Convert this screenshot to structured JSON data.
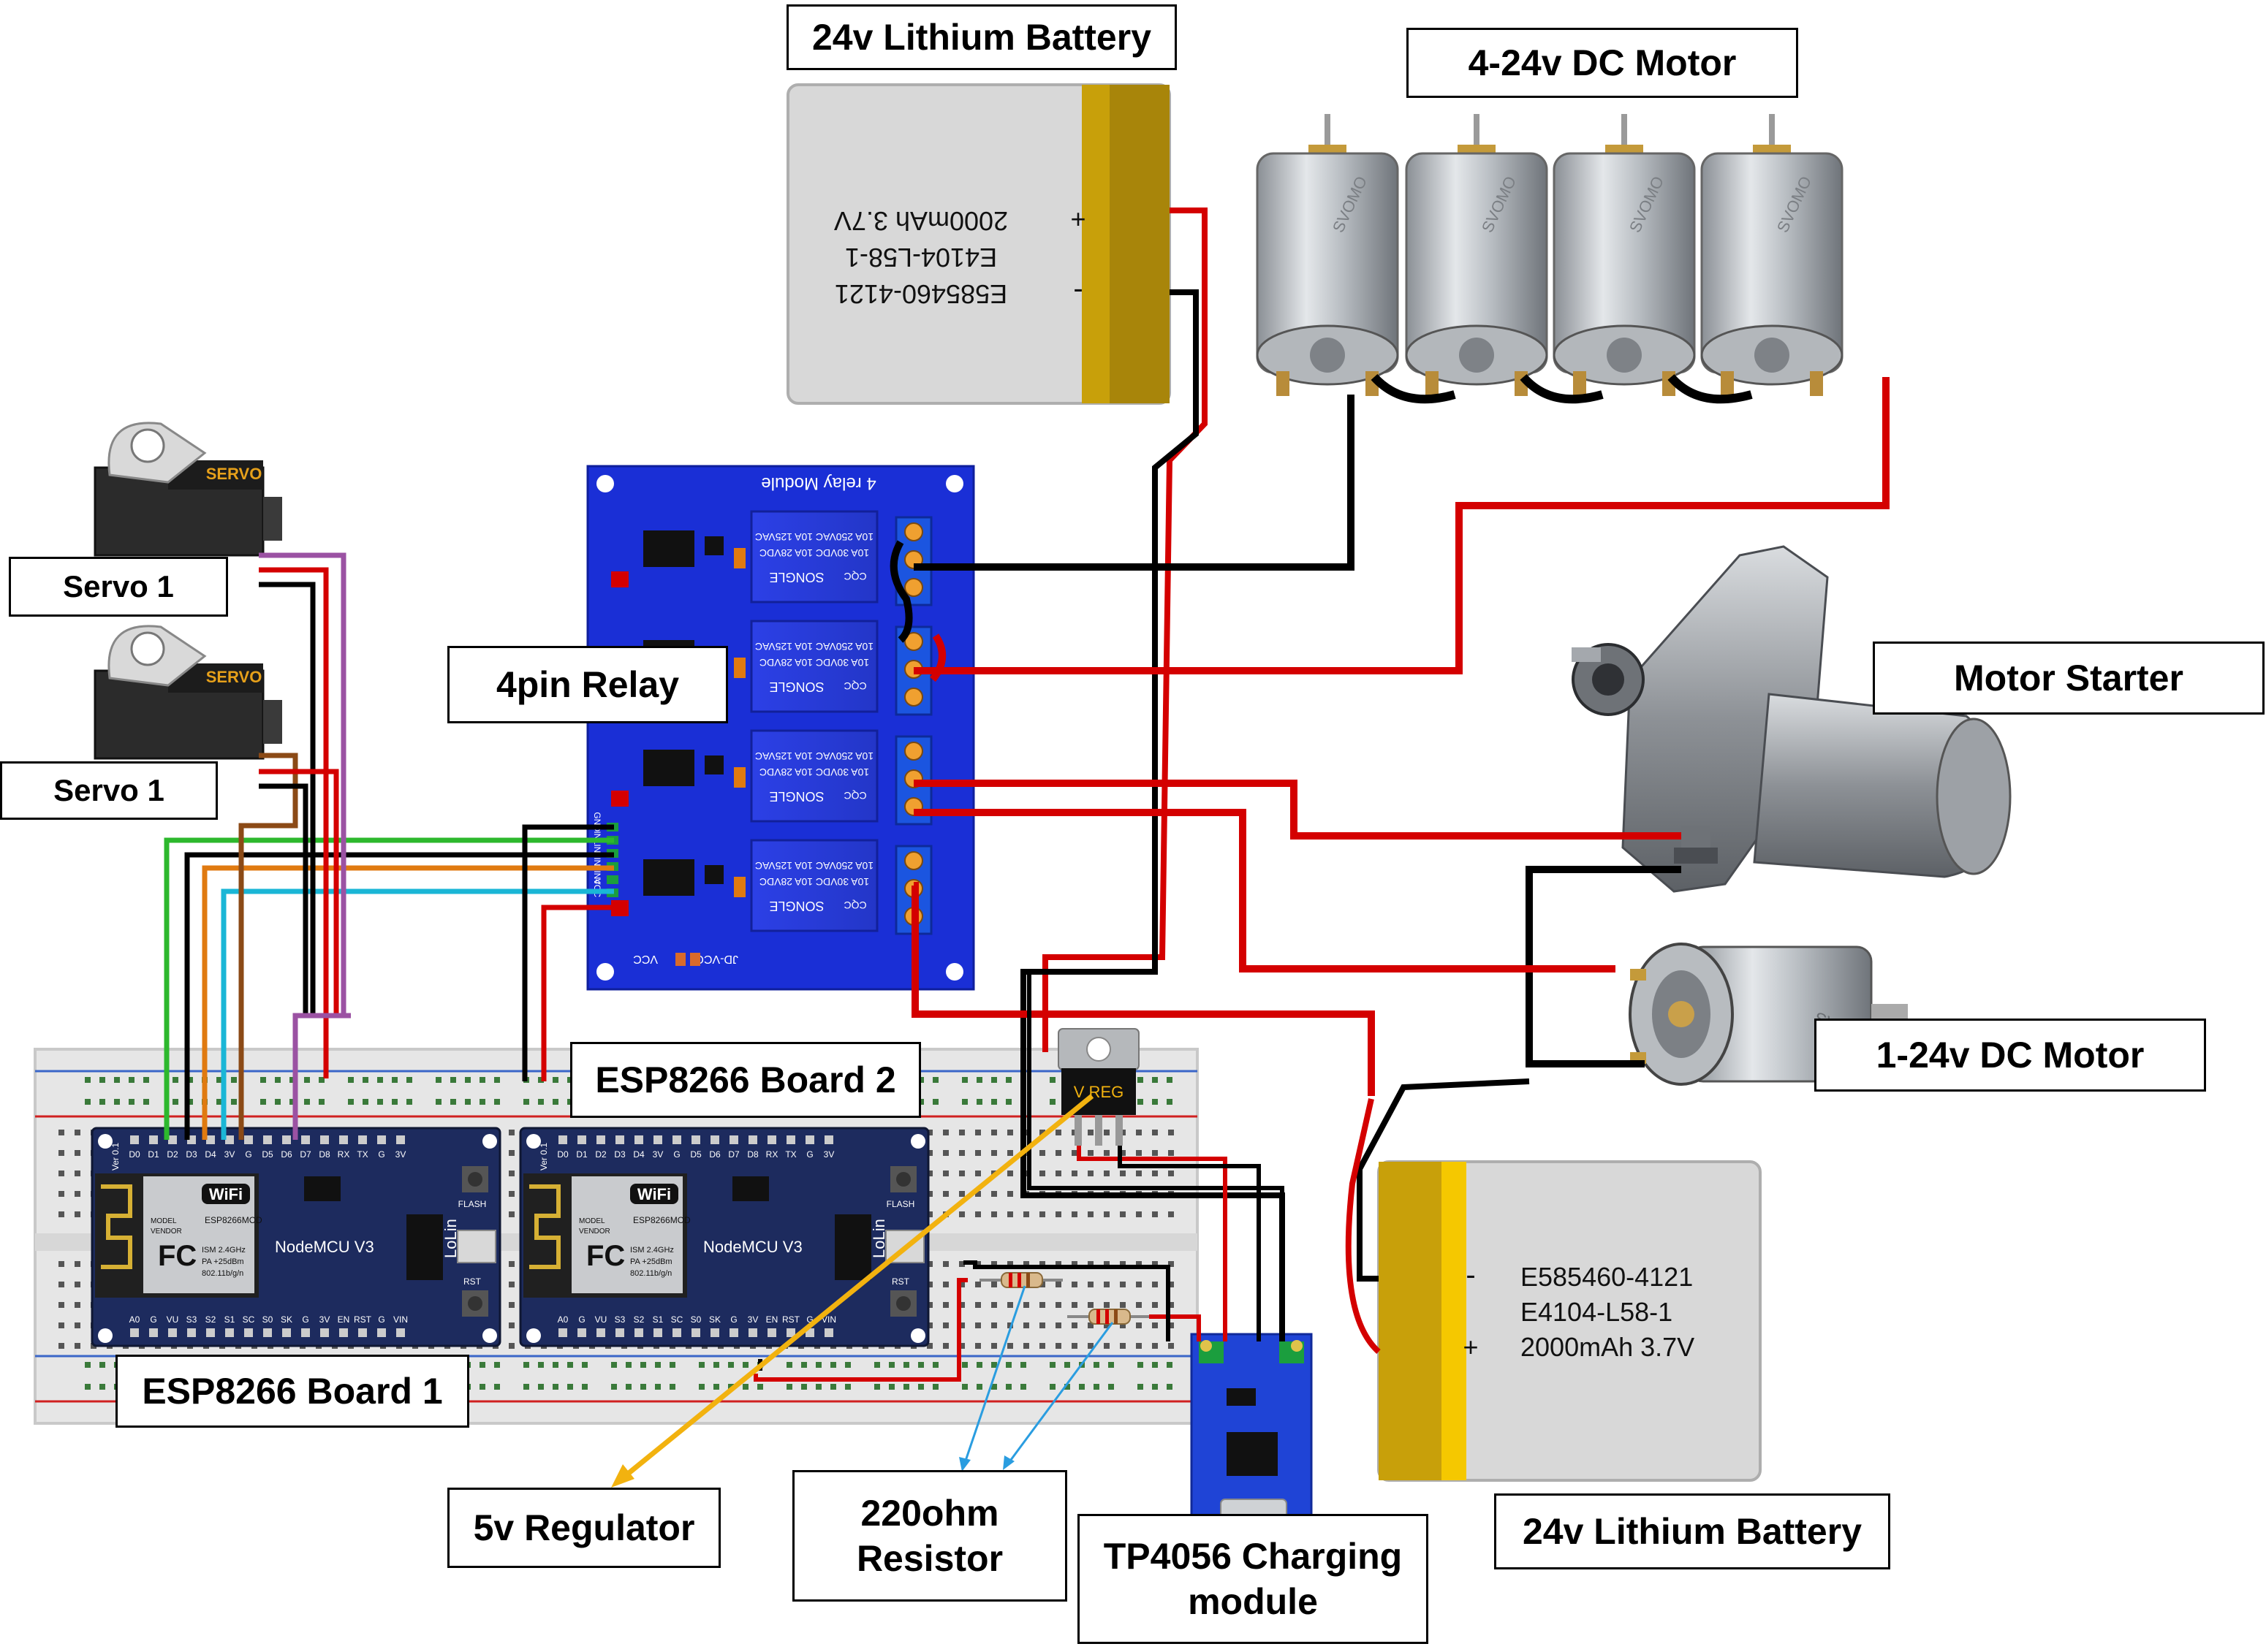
{
  "labels": {
    "battery_top": "24v Lithium Battery",
    "dc_motors": "4-24v DC Motor",
    "relay": "4pin Relay",
    "servo_a": "Servo 1",
    "servo_b": "Servo 1",
    "motor_starter": "Motor Starter",
    "dc_motor_single": "1-24v DC Motor",
    "esp_board_2": "ESP8266 Board 2",
    "esp_board_1": "ESP8266 Board 1",
    "regulator": "5v Regulator",
    "resistor": "220ohm\nResistor",
    "tp4056": "TP4056 Charging\nmodule",
    "battery_bottom": "24v Lithium Battery"
  },
  "battery": {
    "line1": "E585460-4121",
    "line2": "E4104-L58-1",
    "line3": "2000mAh 3.7V",
    "plus": "+",
    "minus": "-"
  },
  "relay_board": {
    "title": "4 relay Module",
    "brand": "SONGLE",
    "spec1": "10A 250VAC  10A 125VAC",
    "spec2": "10A 30VDC  10A 28VDC",
    "cqc": "CQC",
    "pins": [
      "GND",
      "IN1",
      "IN2",
      "IN3",
      "IN4",
      "VCC"
    ],
    "jd_vcc": "JD-VCC",
    "vcc": "VCC"
  },
  "nodemcu": {
    "name": "NodeMCU V3",
    "wifi": "WiFi",
    "fc": "FC",
    "vendor": "MODEL\nVENDOR",
    "mod": "ESP8266MOD",
    "band": "ISM 2.4GHz\nPA +25dBm\n802.11b/g/n",
    "lolin": "LoLin",
    "flash": "FLASH",
    "rst": "RST",
    "top_pins": [
      "D0",
      "D1",
      "D2",
      "D3",
      "D4",
      "3V",
      "G",
      "D5",
      "D6",
      "D7",
      "D8",
      "RX",
      "TX",
      "G",
      "3V"
    ],
    "bot_pins": [
      "A0",
      "G",
      "VU",
      "S3",
      "S2",
      "S1",
      "SC",
      "S0",
      "SK",
      "G",
      "3V",
      "EN",
      "RST",
      "G",
      "VIN"
    ],
    "ver": "Ver 0.1"
  },
  "servo_text": "SERVO",
  "regulator_text": "V REG",
  "motor_brand": "SVOMO",
  "colors": {
    "wire_red": "#d40000",
    "wire_black": "#000000",
    "wire_green": "#2db82d",
    "wire_orange": "#e07a10",
    "wire_cyan": "#1ab6d6",
    "wire_purple": "#9b52a3",
    "wire_brown": "#8b4a16",
    "relay_blue": "#1a2fd6",
    "board_navy": "#1d2b5e",
    "battery_gold": "#b88c0a",
    "arrow_yellow": "#f2b20f",
    "arrow_blue": "#2a9de0"
  }
}
